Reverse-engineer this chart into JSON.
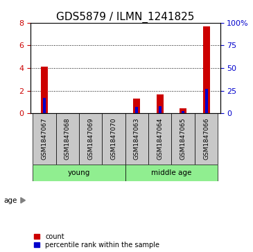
{
  "title": "GDS5879 / ILMN_1241825",
  "samples": [
    "GSM1847067",
    "GSM1847068",
    "GSM1847069",
    "GSM1847070",
    "GSM1847063",
    "GSM1847064",
    "GSM1847065",
    "GSM1847066"
  ],
  "count_values": [
    4.1,
    0.0,
    0.0,
    0.0,
    1.3,
    1.65,
    0.45,
    7.7
  ],
  "percentile_values_pct": [
    17.0,
    0.0,
    0.0,
    0.0,
    7.5,
    8.0,
    2.5,
    27.0
  ],
  "groups": [
    {
      "label": "young",
      "indices": [
        0,
        1,
        2,
        3
      ],
      "color": "#90EE90"
    },
    {
      "label": "middle age",
      "indices": [
        4,
        5,
        6,
        7
      ],
      "color": "#90EE90"
    }
  ],
  "ylim_left": [
    0,
    8
  ],
  "ylim_right": [
    0,
    100
  ],
  "yticks_left": [
    0,
    2,
    4,
    6,
    8
  ],
  "yticks_right": [
    0,
    25,
    50,
    75,
    100
  ],
  "ytick_labels_right": [
    "0",
    "25",
    "50",
    "75",
    "100%"
  ],
  "color_count": "#cc0000",
  "color_percentile": "#0000cc",
  "red_bar_width": 0.3,
  "blue_bar_width": 0.12,
  "age_label": "age",
  "legend_count": "count",
  "legend_percentile": "percentile rank within the sample",
  "title_fontsize": 11,
  "tick_fontsize": 8,
  "background_color": "#ffffff",
  "sample_box_color": "#c8c8c8",
  "grid_color": "#000000",
  "label_fontsize": 6.5
}
